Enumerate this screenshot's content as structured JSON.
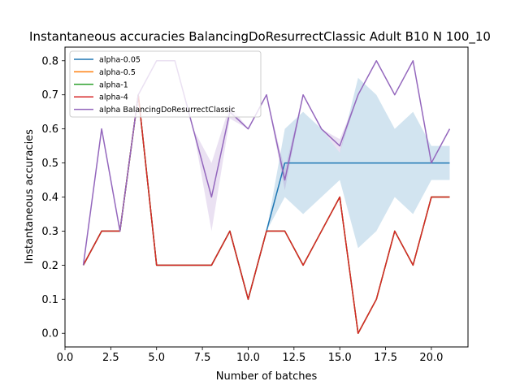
{
  "chart_data": {
    "type": "line",
    "title": "Instantaneous accuracies BalancingDoResurrectClassic Adult B10 N 100_10",
    "xlabel": "Number of batches",
    "ylabel": "Instantaneous accuracies",
    "xlim": [
      0,
      22
    ],
    "ylim": [
      -0.04,
      0.84
    ],
    "xticks": [
      0.0,
      2.5,
      5.0,
      7.5,
      10.0,
      12.5,
      15.0,
      17.5,
      20.0
    ],
    "xtick_labels": [
      "0.0",
      "2.5",
      "5.0",
      "7.5",
      "10.0",
      "12.5",
      "15.0",
      "17.5",
      "20.0"
    ],
    "yticks": [
      0.0,
      0.1,
      0.2,
      0.3,
      0.4,
      0.5,
      0.6,
      0.7,
      0.8
    ],
    "ytick_labels": [
      "0.0",
      "0.1",
      "0.2",
      "0.3",
      "0.4",
      "0.5",
      "0.6",
      "0.7",
      "0.8"
    ],
    "grid": false,
    "legend_position": "top-left",
    "x": [
      1,
      2,
      3,
      4,
      5,
      6,
      7,
      8,
      9,
      10,
      11,
      12,
      13,
      14,
      15,
      16,
      17,
      18,
      19,
      20,
      21
    ],
    "series": [
      {
        "name": "alpha-0.05",
        "color": "#1f77b4",
        "values": [
          0.2,
          0.3,
          0.3,
          0.7,
          0.2,
          0.2,
          0.2,
          0.2,
          0.3,
          0.1,
          0.3,
          0.5,
          0.5,
          0.5,
          0.5,
          0.5,
          0.5,
          0.5,
          0.5,
          0.5,
          0.5
        ],
        "band_lower": [
          0.2,
          0.3,
          0.3,
          0.7,
          0.2,
          0.2,
          0.2,
          0.2,
          0.3,
          0.1,
          0.3,
          0.4,
          0.35,
          0.4,
          0.45,
          0.25,
          0.3,
          0.4,
          0.35,
          0.45,
          0.45
        ],
        "band_upper": [
          0.2,
          0.3,
          0.3,
          0.7,
          0.2,
          0.2,
          0.2,
          0.2,
          0.3,
          0.1,
          0.3,
          0.6,
          0.65,
          0.6,
          0.53,
          0.75,
          0.7,
          0.6,
          0.65,
          0.55,
          0.55
        ]
      },
      {
        "name": "alpha-0.5",
        "color": "#ff7f0e",
        "values": [
          0.2,
          0.3,
          0.3,
          0.7,
          0.2,
          0.2,
          0.2,
          0.2,
          0.3,
          0.1,
          0.3,
          0.3,
          0.2,
          0.3,
          0.4,
          0.0,
          0.1,
          0.3,
          0.2,
          0.4,
          0.4
        ]
      },
      {
        "name": "alpha-1",
        "color": "#2ca02c",
        "values": [
          0.2,
          0.3,
          0.3,
          0.7,
          0.2,
          0.2,
          0.2,
          0.2,
          0.3,
          0.1,
          0.3,
          0.3,
          0.2,
          0.3,
          0.4,
          0.0,
          0.1,
          0.3,
          0.2,
          0.4,
          0.4
        ]
      },
      {
        "name": "alpha-4",
        "color": "#d62728",
        "values": [
          0.2,
          0.3,
          0.3,
          0.7,
          0.2,
          0.2,
          0.2,
          0.2,
          0.3,
          0.1,
          0.3,
          0.3,
          0.2,
          0.3,
          0.4,
          0.0,
          0.1,
          0.3,
          0.2,
          0.4,
          0.4
        ]
      },
      {
        "name": "alpha BalancingDoResurrectClassic",
        "color": "#9467bd",
        "values": [
          0.2,
          0.6,
          0.3,
          0.7,
          0.8,
          0.8,
          0.6,
          0.4,
          0.65,
          0.6,
          0.7,
          0.45,
          0.7,
          0.6,
          0.55,
          0.7,
          0.8,
          0.7,
          0.8,
          0.5,
          0.6
        ],
        "band_lower": [
          0.2,
          0.6,
          0.3,
          0.7,
          0.8,
          0.8,
          0.6,
          0.3,
          0.63,
          0.6,
          0.7,
          0.42,
          0.7,
          0.6,
          0.53,
          0.7,
          0.8,
          0.7,
          0.8,
          0.5,
          0.6
        ],
        "band_upper": [
          0.2,
          0.6,
          0.3,
          0.7,
          0.8,
          0.8,
          0.6,
          0.5,
          0.67,
          0.6,
          0.7,
          0.48,
          0.7,
          0.6,
          0.57,
          0.7,
          0.8,
          0.7,
          0.8,
          0.5,
          0.6
        ]
      }
    ]
  }
}
